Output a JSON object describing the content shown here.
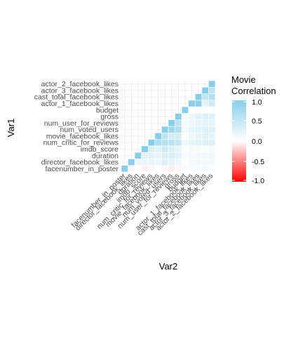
{
  "chart_data": {
    "type": "heatmap",
    "xlabel": "Var2",
    "ylabel": "Var1",
    "legend": {
      "title_lines": [
        "Movie",
        "Correlation"
      ],
      "placement": "right",
      "breaks": [
        1.0,
        0.5,
        0.0,
        -0.5,
        -1.0
      ],
      "break_labels": [
        "1.0",
        "0.5",
        "0.0",
        "-0.5",
        "-1.0"
      ],
      "range": [
        -1,
        1
      ]
    },
    "colors": {
      "low": "#ff0000",
      "mid": "#ffffff",
      "high": "#87ceeb",
      "grid": "#ebebeb"
    },
    "variables": [
      "facenumber_in_poster",
      "director_facebook_likes",
      "duration",
      "imdb_score",
      "num_critic_for_reviews",
      "movie_facebook_likes",
      "num_voted_users",
      "num_user_for_reviews",
      "gross",
      "budget",
      "actor_1_facebook_likes",
      "cast_total_facebook_likes",
      "actor_3_facebook_likes",
      "actor_2_facebook_likes"
    ],
    "matrix": [
      [
        1.0,
        null,
        null,
        null,
        null,
        null,
        null,
        null,
        null,
        null,
        null,
        null,
        null,
        null
      ],
      [
        -0.04,
        1.0,
        null,
        null,
        null,
        null,
        null,
        null,
        null,
        null,
        null,
        null,
        null,
        null
      ],
      [
        0.01,
        0.17,
        1.0,
        null,
        null,
        null,
        null,
        null,
        null,
        null,
        null,
        null,
        null,
        null
      ],
      [
        -0.06,
        0.17,
        0.26,
        1.0,
        null,
        null,
        null,
        null,
        null,
        null,
        null,
        null,
        null,
        null
      ],
      [
        -0.03,
        0.18,
        0.26,
        0.31,
        1.0,
        null,
        null,
        null,
        null,
        null,
        null,
        null,
        null,
        null
      ],
      [
        0.01,
        0.16,
        0.2,
        0.25,
        0.68,
        1.0,
        null,
        null,
        null,
        null,
        null,
        null,
        null,
        null
      ],
      [
        -0.03,
        0.3,
        0.31,
        0.41,
        0.62,
        0.54,
        1.0,
        null,
        null,
        null,
        null,
        null,
        null,
        null
      ],
      [
        -0.07,
        0.22,
        0.35,
        0.29,
        0.57,
        0.37,
        0.8,
        1.0,
        null,
        null,
        null,
        null,
        null,
        null
      ],
      [
        -0.03,
        0.14,
        0.25,
        0.2,
        0.48,
        0.37,
        0.64,
        0.56,
        1.0,
        null,
        null,
        null,
        null,
        null
      ],
      [
        -0.02,
        0.02,
        0.07,
        0.03,
        0.12,
        0.05,
        0.08,
        0.08,
        0.1,
        1.0,
        null,
        null,
        null,
        null
      ],
      [
        0.06,
        0.09,
        0.09,
        0.08,
        0.19,
        0.13,
        0.19,
        0.14,
        0.15,
        0.02,
        1.0,
        null,
        null,
        null
      ],
      [
        0.08,
        0.12,
        0.12,
        0.09,
        0.26,
        0.21,
        0.26,
        0.21,
        0.24,
        0.04,
        0.95,
        1.0,
        null,
        null
      ],
      [
        0.1,
        0.12,
        0.13,
        0.05,
        0.27,
        0.27,
        0.29,
        0.23,
        0.31,
        0.04,
        0.25,
        0.49,
        1.0,
        null
      ],
      [
        0.07,
        0.12,
        0.13,
        0.08,
        0.28,
        0.23,
        0.27,
        0.22,
        0.26,
        0.04,
        0.39,
        0.64,
        0.56,
        1.0
      ]
    ]
  }
}
